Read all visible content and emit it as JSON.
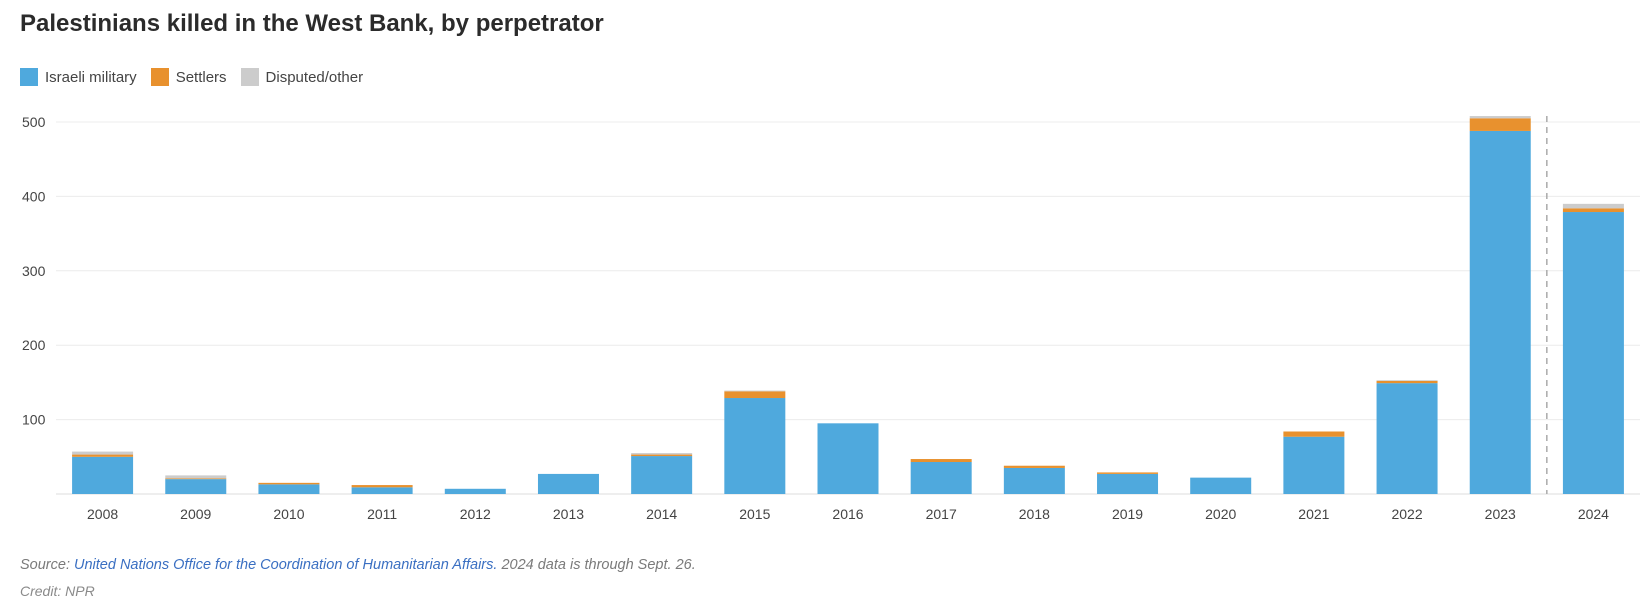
{
  "title": "Palestinians killed in the West Bank, by perpetrator",
  "legend": [
    {
      "label": "Israeli military",
      "color": "#4fa9dd"
    },
    {
      "label": "Settlers",
      "color": "#e8912e"
    },
    {
      "label": "Disputed/other",
      "color": "#cccccc"
    }
  ],
  "source": {
    "prefix": "Source:",
    "link_text": "United Nations Office for the Coordination of Humanitarian Affairs.",
    "note": "2024 data is through Sept. 26."
  },
  "credit": "Credit: NPR",
  "chart_data": {
    "type": "bar",
    "stacked": true,
    "title": "Palestinians killed in the West Bank, by perpetrator",
    "xlabel": "",
    "ylabel": "",
    "ylim": [
      0,
      500
    ],
    "yticks": [
      100,
      200,
      300,
      400,
      500
    ],
    "grid": true,
    "legend_position": "top-left",
    "categories": [
      "2008",
      "2009",
      "2010",
      "2011",
      "2012",
      "2013",
      "2014",
      "2015",
      "2016",
      "2017",
      "2018",
      "2019",
      "2020",
      "2021",
      "2022",
      "2023",
      "2024"
    ],
    "series": [
      {
        "name": "Israeli military",
        "color": "#4fa9dd",
        "values": [
          50,
          20,
          13,
          9,
          7,
          27,
          51,
          129,
          95,
          43,
          35,
          27,
          22,
          77,
          149,
          488,
          379
        ]
      },
      {
        "name": "Settlers",
        "color": "#e8912e",
        "values": [
          3,
          1,
          2,
          3,
          0,
          0,
          2,
          9,
          0,
          4,
          3,
          2,
          0,
          7,
          3,
          17,
          5
        ]
      },
      {
        "name": "Disputed/other",
        "color": "#cccccc",
        "values": [
          4,
          4,
          0,
          0,
          0,
          0,
          2,
          1,
          0,
          0,
          0,
          0,
          0,
          0,
          1,
          3,
          6
        ]
      }
    ],
    "annotations": [
      {
        "type": "dashed-vline",
        "between": [
          "2023",
          "2024"
        ]
      }
    ]
  }
}
